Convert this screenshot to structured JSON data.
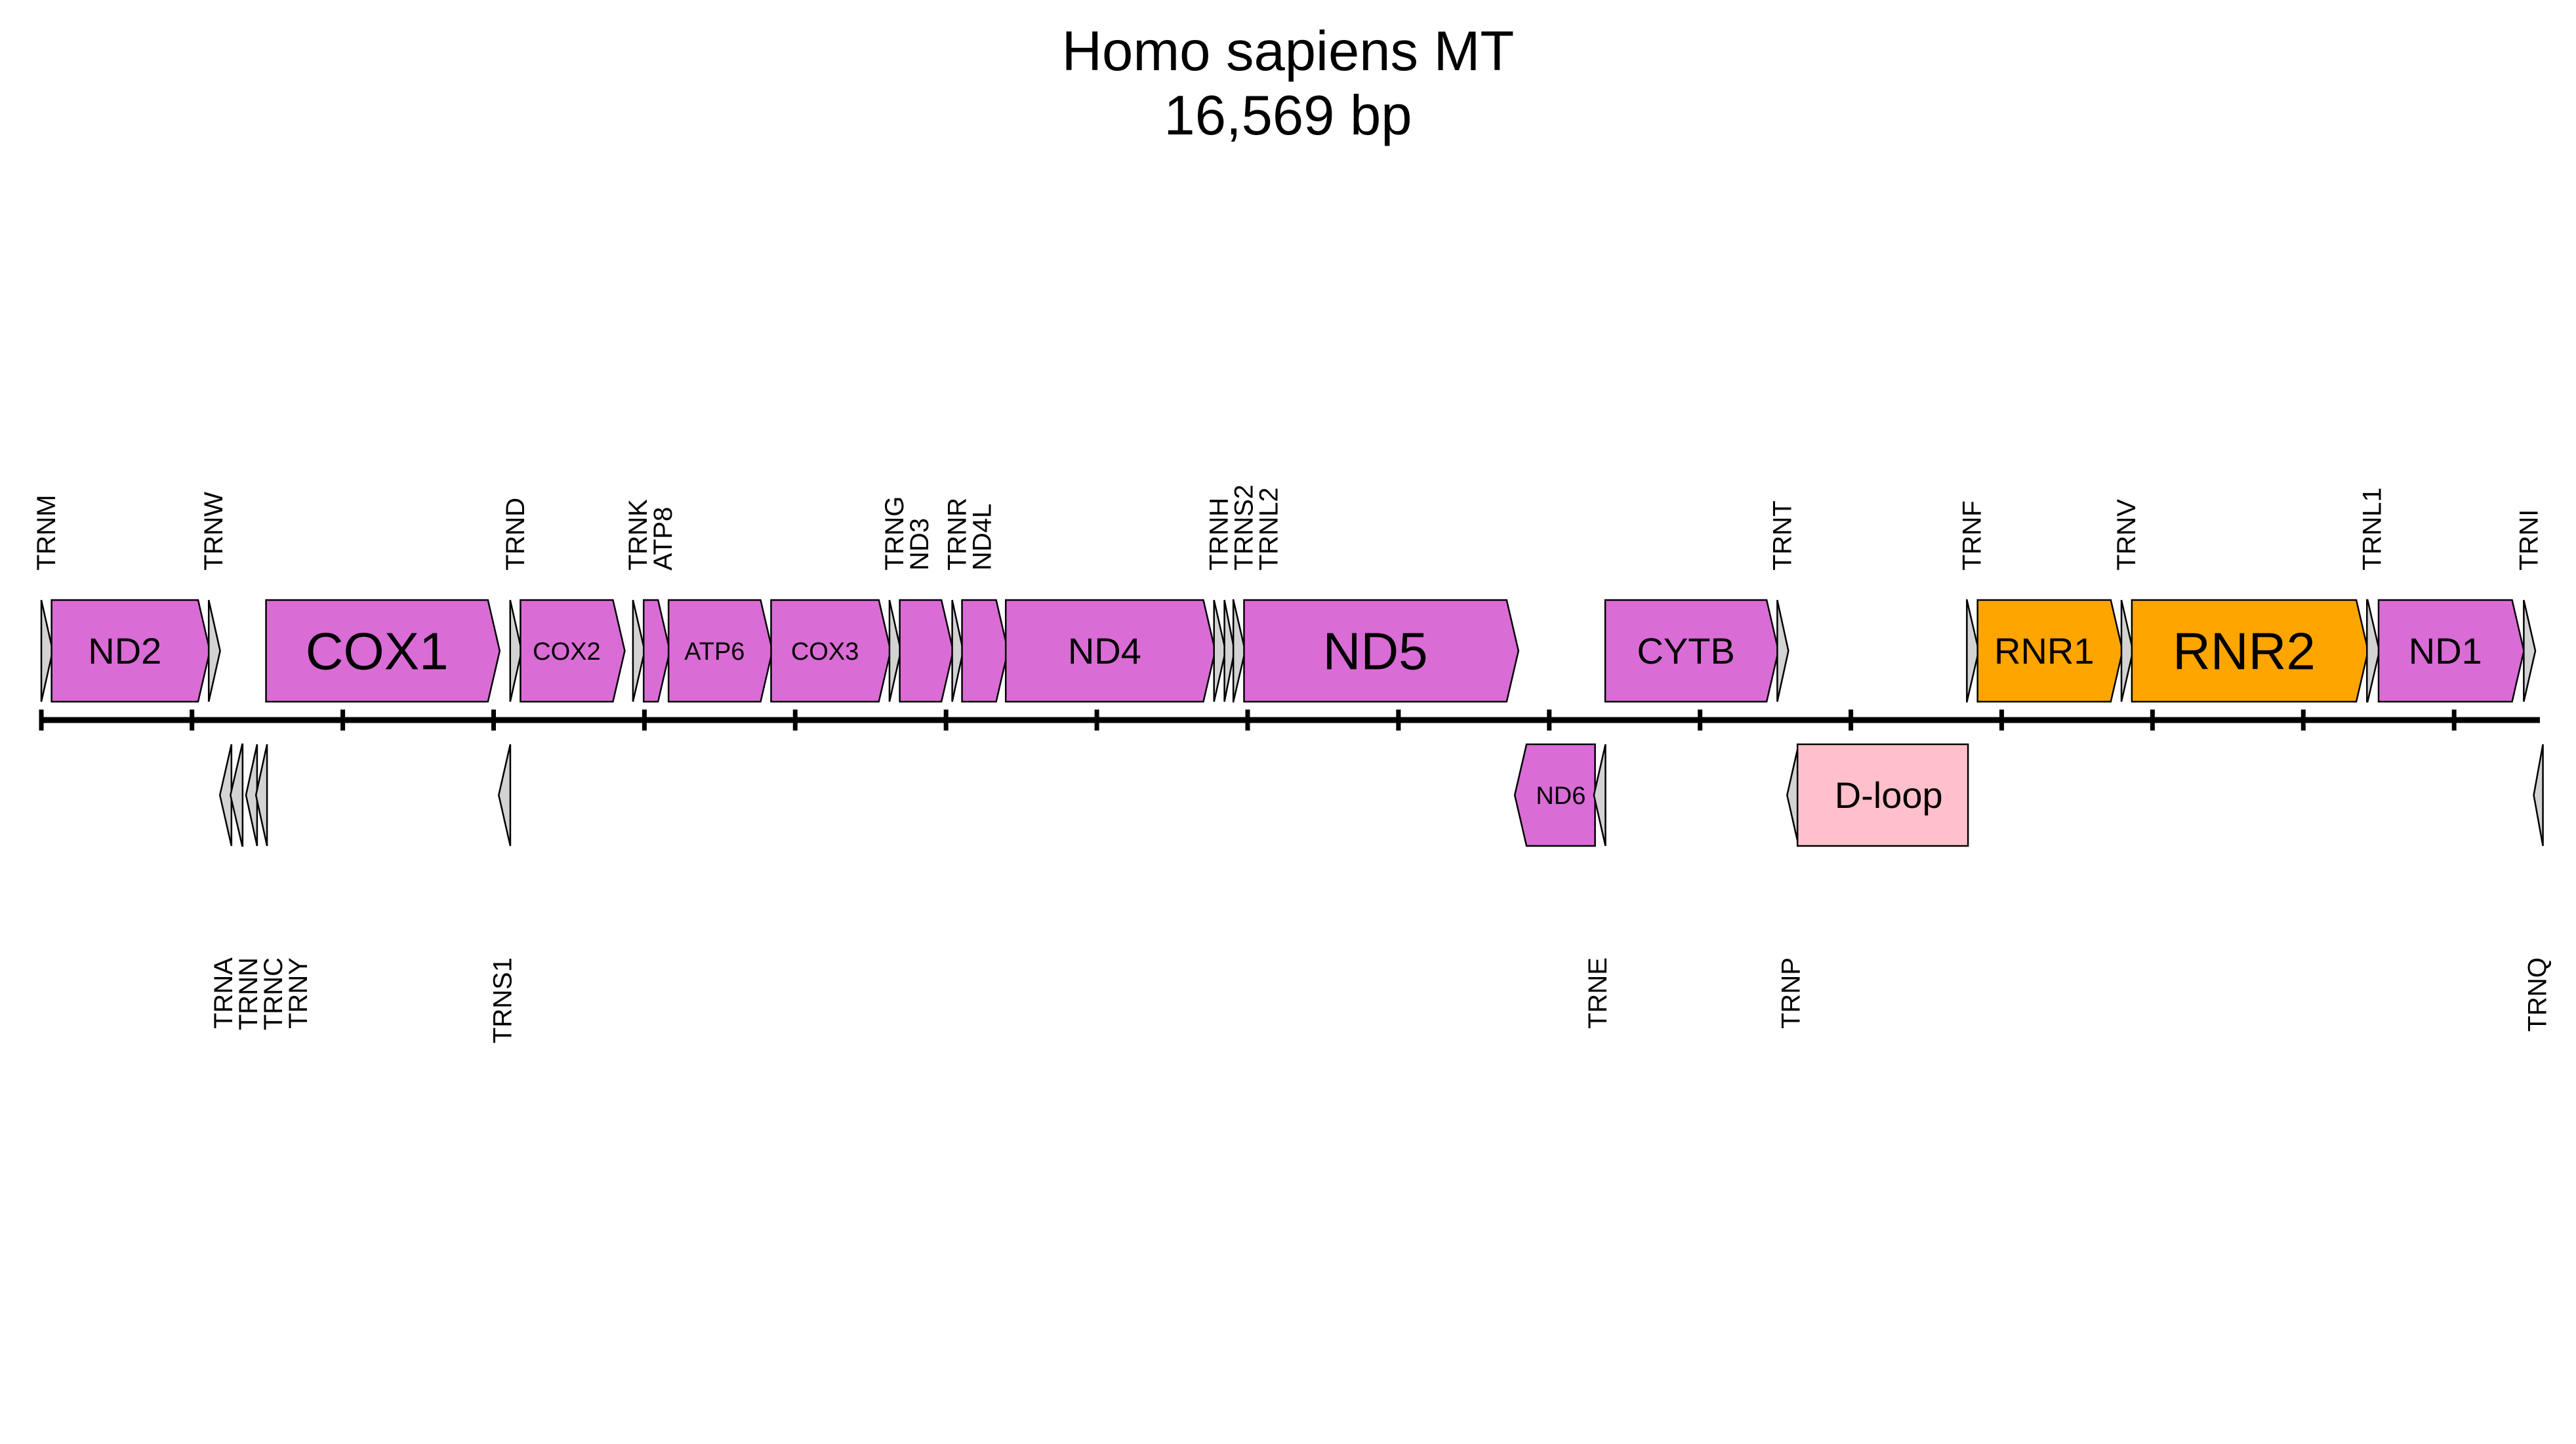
{
  "title": "Homo sapiens MT",
  "subtitle": "16,569 bp",
  "colors": {
    "protein": "#DA6CD6",
    "rrna": "#FFA500",
    "trna": "#D3D3D3",
    "dloop": "#FFC0CB",
    "outline": "#000000"
  },
  "chart_data": {
    "type": "genome-map",
    "sequence": "Homo sapiens MT",
    "length_bp": 16569,
    "axis": {
      "start": 1,
      "end": 16569,
      "tick_interval": 1000,
      "ticks_labeled": false
    },
    "features": [
      {
        "name": "TRNM",
        "type": "trna",
        "strand": "+",
        "start": 1,
        "end": 68
      },
      {
        "name": "ND2",
        "type": "protein",
        "strand": "+",
        "start": 69,
        "end": 1110
      },
      {
        "name": "TRNW",
        "type": "trna",
        "strand": "+",
        "start": 1111,
        "end": 1178
      },
      {
        "name": "TRNA",
        "type": "trna",
        "strand": "-",
        "start": 1185,
        "end": 1253
      },
      {
        "name": "TRNN",
        "type": "trna",
        "strand": "-",
        "start": 1255,
        "end": 1327
      },
      {
        "name": "TRNC",
        "type": "trna",
        "strand": "-",
        "start": 1358,
        "end": 1423
      },
      {
        "name": "TRNY",
        "type": "trna",
        "strand": "-",
        "start": 1424,
        "end": 1489
      },
      {
        "name": "COX1",
        "type": "protein",
        "strand": "+",
        "start": 1491,
        "end": 3032
      },
      {
        "name": "TRNS1",
        "type": "trna",
        "strand": "-",
        "start": 3034,
        "end": 3102
      },
      {
        "name": "TRND",
        "type": "trna",
        "strand": "+",
        "start": 3110,
        "end": 3177
      },
      {
        "name": "COX2",
        "type": "protein",
        "strand": "+",
        "start": 3178,
        "end": 3861
      },
      {
        "name": "TRNK",
        "type": "trna",
        "strand": "+",
        "start": 3924,
        "end": 3993
      },
      {
        "name": "ATP8",
        "type": "protein",
        "strand": "+",
        "start": 3995,
        "end": 4160
      },
      {
        "name": "ATP6",
        "type": "protein",
        "strand": "+",
        "start": 4160,
        "end": 4840
      },
      {
        "name": "COX3",
        "type": "protein",
        "strand": "+",
        "start": 4840,
        "end": 5624
      },
      {
        "name": "TRNG",
        "type": "trna",
        "strand": "+",
        "start": 5625,
        "end": 5692
      },
      {
        "name": "ND3",
        "type": "protein",
        "strand": "+",
        "start": 5693,
        "end": 6039
      },
      {
        "name": "TRNR",
        "type": "trna",
        "strand": "+",
        "start": 6041,
        "end": 6105
      },
      {
        "name": "ND4L",
        "type": "protein",
        "strand": "+",
        "start": 6106,
        "end": 6402
      },
      {
        "name": "ND4",
        "type": "protein",
        "strand": "+",
        "start": 6396,
        "end": 7776
      },
      {
        "name": "TRNH",
        "type": "trna",
        "strand": "+",
        "start": 7777,
        "end": 7845
      },
      {
        "name": "TRNS2",
        "type": "trna",
        "strand": "+",
        "start": 7846,
        "end": 7904
      },
      {
        "name": "TRNL2",
        "type": "trna",
        "strand": "+",
        "start": 7905,
        "end": 7975
      },
      {
        "name": "ND5",
        "type": "protein",
        "strand": "+",
        "start": 7976,
        "end": 9787
      },
      {
        "name": "ND6",
        "type": "protein",
        "strand": "-",
        "start": 9771,
        "end": 10295
      },
      {
        "name": "TRNE",
        "type": "trna",
        "strand": "-",
        "start": 10296,
        "end": 10364
      },
      {
        "name": "CYTB",
        "type": "protein",
        "strand": "+",
        "start": 10371,
        "end": 11511
      },
      {
        "name": "TRNT",
        "type": "trna",
        "strand": "+",
        "start": 11512,
        "end": 11577
      },
      {
        "name": "TRNP",
        "type": "trna",
        "strand": "-",
        "start": 11577,
        "end": 11645
      },
      {
        "name": "D-loop",
        "type": "dloop",
        "strand": "-",
        "start": 11646,
        "end": 12768
      },
      {
        "name": "TRNF",
        "type": "trna",
        "strand": "+",
        "start": 12769,
        "end": 12839
      },
      {
        "name": "RNR1",
        "type": "rrna",
        "strand": "+",
        "start": 12840,
        "end": 13793
      },
      {
        "name": "TRNV",
        "type": "trna",
        "strand": "+",
        "start": 13794,
        "end": 13862
      },
      {
        "name": "RNR2",
        "type": "rrna",
        "strand": "+",
        "start": 13863,
        "end": 15421
      },
      {
        "name": "TRNL1",
        "type": "trna",
        "strand": "+",
        "start": 15422,
        "end": 15496
      },
      {
        "name": "ND1",
        "type": "protein",
        "strand": "+",
        "start": 15499,
        "end": 16454
      },
      {
        "name": "TRNI",
        "type": "trna",
        "strand": "+",
        "start": 16462,
        "end": 16530
      },
      {
        "name": "TRNQ",
        "type": "trna",
        "strand": "-",
        "start": 16528,
        "end": 16569
      }
    ]
  }
}
